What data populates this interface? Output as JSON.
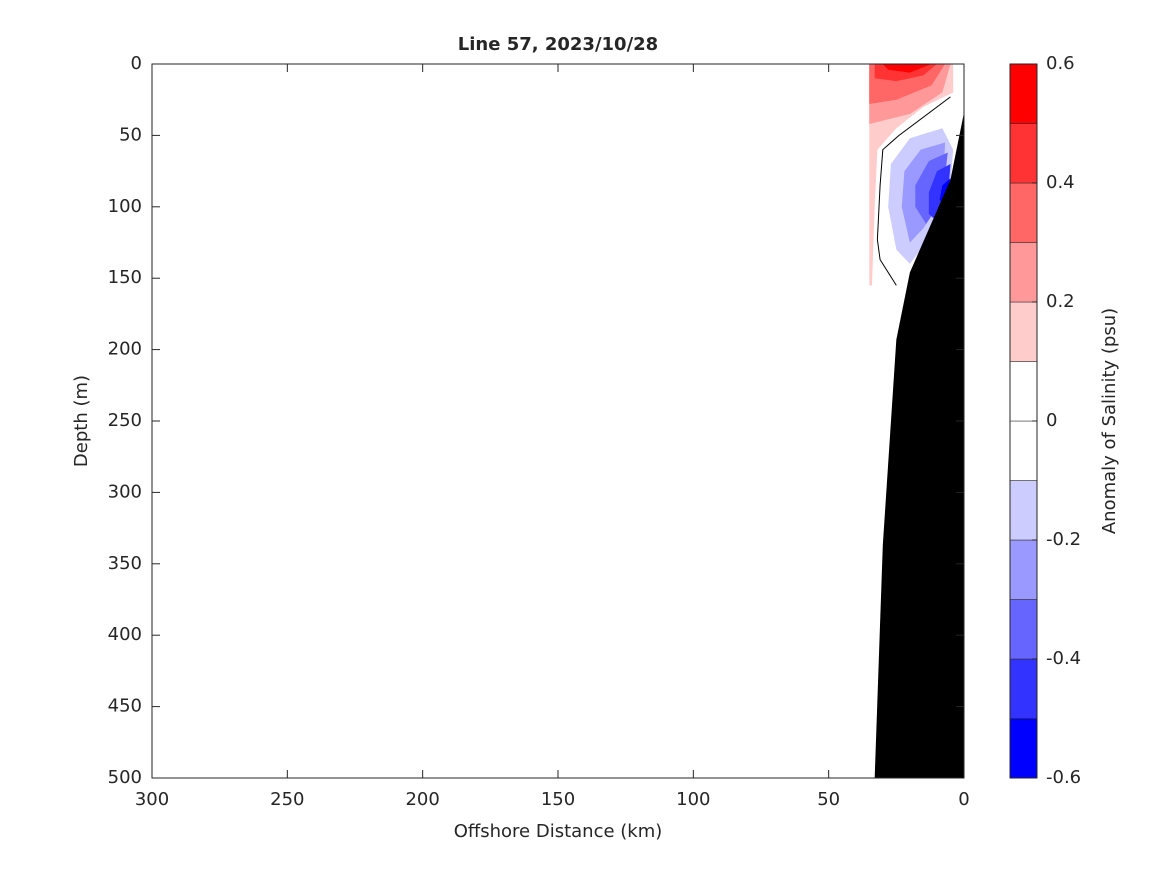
{
  "chart_data": {
    "type": "contourf",
    "title": "Line 57, 2023/10/28",
    "xlabel": "Offshore Distance (km)",
    "ylabel": "Depth (m)",
    "colorbar_label": "Anomaly of Salinity (psu)",
    "xlim": [
      300,
      0
    ],
    "xticks": [
      300,
      250,
      200,
      150,
      100,
      50,
      0
    ],
    "ylim": [
      0,
      500
    ],
    "yticks": [
      0,
      50,
      100,
      150,
      200,
      250,
      300,
      350,
      400,
      450,
      500
    ],
    "clim": [
      -0.6,
      0.6
    ],
    "cticks": [
      -0.6,
      -0.4,
      -0.2,
      0,
      0.2,
      0.4,
      0.6
    ],
    "levels": [
      -0.6,
      -0.5,
      -0.4,
      -0.3,
      -0.2,
      -0.1,
      0,
      0.1,
      0.2,
      0.3,
      0.4,
      0.5,
      0.6
    ],
    "colors": [
      "#0000ff",
      "#3333ff",
      "#6666ff",
      "#9999ff",
      "#ccccff",
      "#ffffff",
      "#ffffff",
      "#ffcccc",
      "#ff9999",
      "#ff6666",
      "#ff3333",
      "#ff0000"
    ],
    "contours": [
      {
        "range": [
          0.1,
          0.2
        ],
        "x": [
          35,
          4,
          4,
          15,
          25,
          32,
          33,
          34,
          35
        ],
        "depth": [
          0,
          0,
          20,
          30,
          45,
          60,
          100,
          155,
          155
        ]
      },
      {
        "range": [
          0.2,
          0.3
        ],
        "x": [
          35,
          5,
          8,
          20,
          35
        ],
        "depth": [
          0,
          0,
          20,
          35,
          42
        ]
      },
      {
        "range": [
          0.3,
          0.4
        ],
        "x": [
          35,
          7,
          12,
          25,
          35
        ],
        "depth": [
          0,
          0,
          15,
          25,
          28
        ]
      },
      {
        "range": [
          0.4,
          0.5
        ],
        "x": [
          33,
          10,
          15,
          25,
          33
        ],
        "depth": [
          0,
          0,
          8,
          12,
          10
        ]
      },
      {
        "range": [
          0.5,
          0.6
        ],
        "x": [
          30,
          12,
          20,
          28
        ],
        "depth": [
          0,
          0,
          6,
          4
        ]
      },
      {
        "range": [
          -0.2,
          -0.1
        ],
        "x": [
          8,
          20,
          27,
          28,
          25,
          20,
          12,
          5,
          4
        ],
        "depth": [
          45,
          52,
          70,
          100,
          130,
          140,
          120,
          85,
          60
        ]
      },
      {
        "range": [
          -0.3,
          -0.2
        ],
        "x": [
          7,
          16,
          22,
          23,
          20,
          15,
          8
        ],
        "depth": [
          55,
          60,
          75,
          100,
          125,
          115,
          95
        ]
      },
      {
        "range": [
          -0.4,
          -0.3
        ],
        "x": [
          6,
          13,
          18,
          18,
          14,
          8
        ],
        "depth": [
          62,
          68,
          85,
          100,
          112,
          95
        ]
      },
      {
        "range": [
          -0.5,
          -0.4
        ],
        "x": [
          5,
          10,
          13,
          13,
          10,
          6
        ],
        "depth": [
          70,
          75,
          90,
          105,
          110,
          95
        ]
      },
      {
        "range": [
          -0.6,
          -0.5
        ],
        "x": [
          5,
          8,
          9,
          7
        ],
        "depth": [
          80,
          85,
          95,
          100
        ]
      }
    ],
    "zero_contour": {
      "x": [
        5,
        24,
        30,
        31,
        32,
        31,
        25
      ],
      "depth": [
        23,
        50,
        60,
        85,
        123,
        137,
        155
      ],
      "color": "#000000"
    },
    "bathymetry": {
      "x": [
        0,
        5,
        20,
        25,
        30,
        33,
        0
      ],
      "depth": [
        34,
        81,
        146,
        193,
        337,
        500,
        500
      ],
      "color": "#000000"
    }
  }
}
